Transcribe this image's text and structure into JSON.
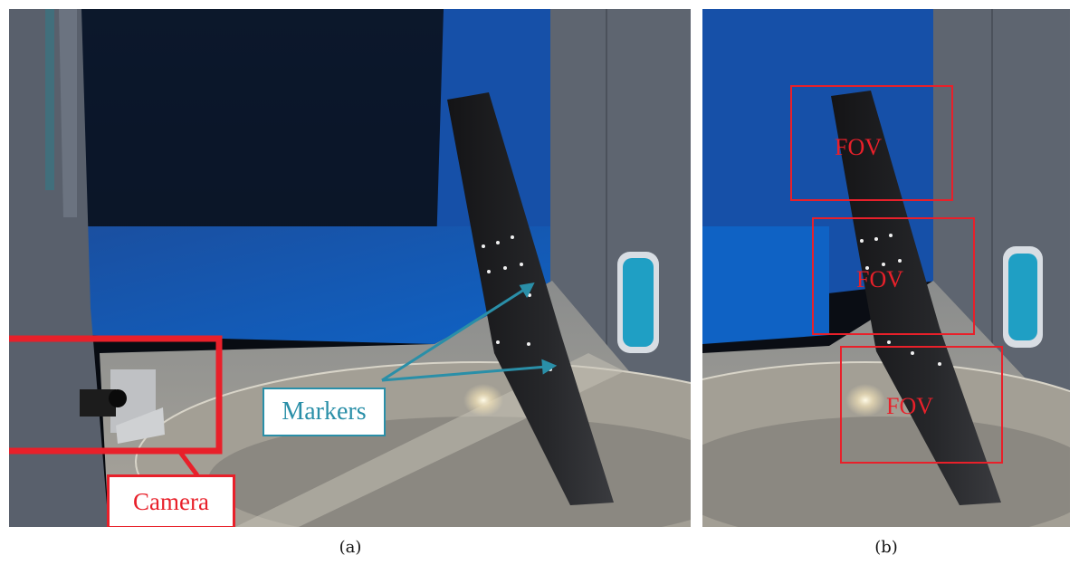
{
  "panel_a": {
    "caption": "(a)",
    "markers_label": "Markers",
    "camera_label": "Camera"
  },
  "panel_b": {
    "caption": "(b)",
    "fov_labels": [
      "FOV",
      "FOV",
      "FOV"
    ]
  },
  "colors": {
    "highlight_red": "#e8202a",
    "marker_arrow_teal": "#2a8fa8",
    "tunnel_blue": "#1560b8",
    "wall_gray": "#5a6270",
    "floor_gray": "#9a9890",
    "wing_black": "#1c1c1e"
  }
}
